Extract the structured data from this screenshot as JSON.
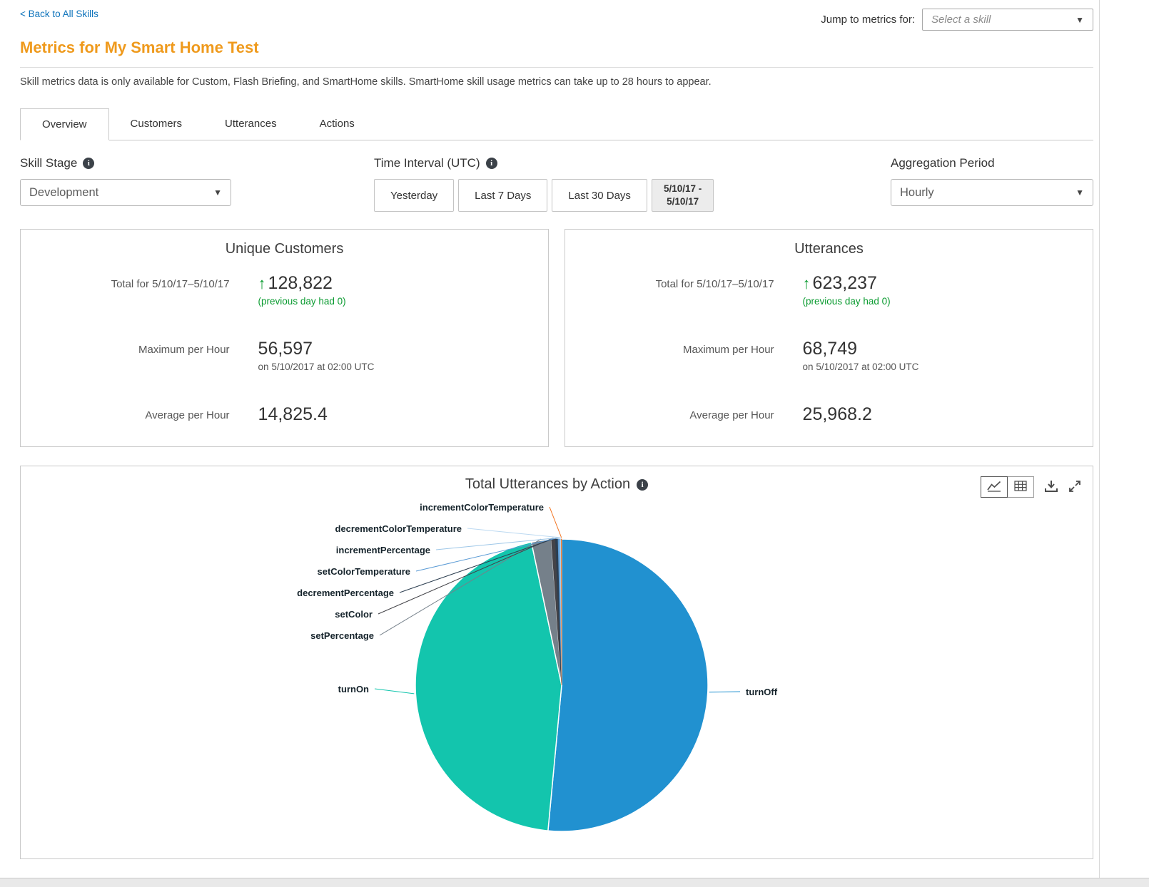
{
  "colors": {
    "title_orange": "#ef9a1d",
    "link_blue": "#0e73bb",
    "positive_green": "#0a9b30"
  },
  "header": {
    "back_link": "< Back to All Skills",
    "jump_label": "Jump to metrics for:",
    "jump_placeholder": "Select a skill",
    "title": "Metrics for My Smart Home Test",
    "description": "Skill metrics data is only available for Custom, Flash Briefing, and SmartHome skills. SmartHome skill usage metrics can take up to 28 hours to appear."
  },
  "tabs": [
    {
      "label": "Overview",
      "active": true
    },
    {
      "label": "Customers",
      "active": false
    },
    {
      "label": "Utterances",
      "active": false
    },
    {
      "label": "Actions",
      "active": false
    }
  ],
  "controls": {
    "skill_stage": {
      "label": "Skill Stage",
      "value": "Development"
    },
    "time_interval": {
      "label": "Time Interval (UTC)",
      "buttons": [
        "Yesterday",
        "Last 7 Days",
        "Last 30 Days"
      ],
      "selected_range_line1": "5/10/17 -",
      "selected_range_line2": "5/10/17"
    },
    "aggregation_period": {
      "label": "Aggregation Period",
      "value": "Hourly"
    }
  },
  "cards": {
    "unique_customers": {
      "title": "Unique Customers",
      "total_label": "Total for 5/10/17–5/10/17",
      "total_value": "128,822",
      "total_note": "(previous day had 0)",
      "max_label": "Maximum per Hour",
      "max_value": "56,597",
      "max_note": "on 5/10/2017 at 02:00 UTC",
      "avg_label": "Average per Hour",
      "avg_value": "14,825.4"
    },
    "utterances": {
      "title": "Utterances",
      "total_label": "Total for 5/10/17–5/10/17",
      "total_value": "623,237",
      "total_note": "(previous day had 0)",
      "max_label": "Maximum per Hour",
      "max_value": "68,749",
      "max_note": "on 5/10/2017 at 02:00 UTC",
      "avg_label": "Average per Hour",
      "avg_value": "25,968.2"
    }
  },
  "chart": {
    "title": "Total Utterances by Action"
  },
  "chart_data": {
    "type": "pie",
    "title": "Total Utterances by Action",
    "total_utterances_for_period": "623,237",
    "legend_position": "none",
    "slices": [
      {
        "label": "turnOff",
        "value_pct": 51.5,
        "color": "#2191d0"
      },
      {
        "label": "turnOn",
        "value_pct": 45.2,
        "color": "#13c5ad"
      },
      {
        "label": "setPercentage",
        "value_pct": 2.2,
        "color": "#75808a"
      },
      {
        "label": "setColor",
        "value_pct": 0.45,
        "color": "#434348"
      },
      {
        "label": "decrementPercentage",
        "value_pct": 0.28,
        "color": "#2c3e50"
      },
      {
        "label": "setColorTemperature",
        "value_pct": 0.19,
        "color": "#5b9bd5"
      },
      {
        "label": "incrementPercentage",
        "value_pct": 0.1,
        "color": "#9ec7e8"
      },
      {
        "label": "decrementColorTemperature",
        "value_pct": 0.06,
        "color": "#bcd9f1"
      },
      {
        "label": "incrementColorTemperature",
        "value_pct": 0.04,
        "color": "#f2711c"
      }
    ]
  }
}
